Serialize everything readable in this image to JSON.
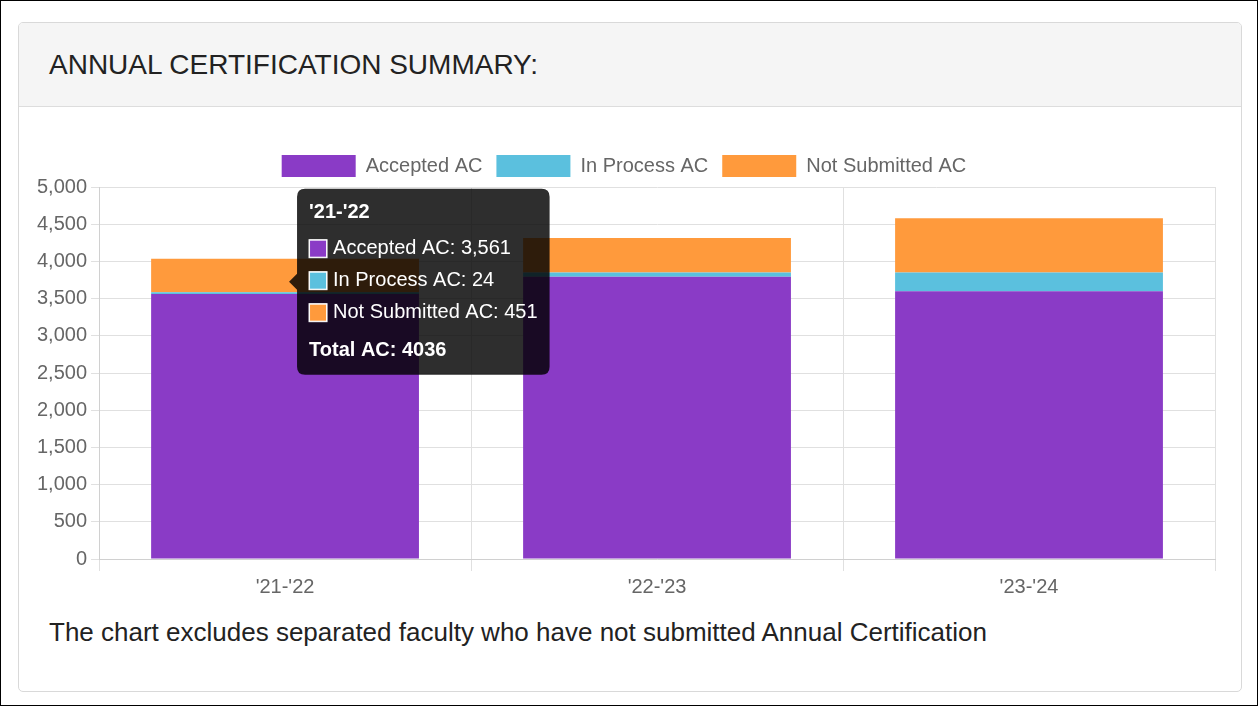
{
  "chart_data": {
    "type": "bar",
    "title": "ANNUAL CERTIFICATION SUMMARY:",
    "caption": "The chart excludes separated faculty who have not submitted Annual Certification",
    "categories": [
      "'21-'22",
      "'22-'23",
      "'23-'24"
    ],
    "series": [
      {
        "name": "Accepted AC",
        "color": "#8a3bc6",
        "values": [
          3561,
          3795,
          3599
        ]
      },
      {
        "name": "In Process AC",
        "color": "#5bc0de",
        "values": [
          24,
          56,
          252
        ]
      },
      {
        "name": "Not Submitted AC",
        "color": "#ff9a3c",
        "values": [
          451,
          463,
          729
        ]
      }
    ],
    "stacked": true,
    "ylim": [
      0,
      5000
    ],
    "yticks": [
      0,
      500,
      {
        "value": 1000,
        "label": "1,000"
      },
      {
        "value": 1500,
        "label": "1,500"
      },
      {
        "value": 2000,
        "label": "2,000"
      },
      {
        "value": 2500,
        "label": "2,500"
      },
      {
        "value": 3000,
        "label": "3,000"
      },
      {
        "value": 3500,
        "label": "3,500"
      },
      {
        "value": 4000,
        "label": "4,000"
      },
      {
        "value": 4500,
        "label": "4,500"
      },
      {
        "value": 5000,
        "label": "5,000"
      }
    ],
    "grid": true,
    "legend": "top",
    "tooltip": {
      "category": "'21-'22",
      "lines": [
        "Accepted AC: 3,561",
        "In Process AC: 24",
        "Not Submitted AC: 451"
      ],
      "total": "Total AC: 4036"
    }
  }
}
